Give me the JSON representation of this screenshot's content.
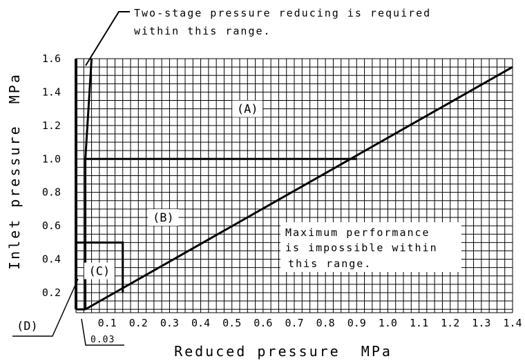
{
  "chart_data": {
    "type": "line",
    "title": "",
    "xlabel": "Reduced pressure  MPa",
    "ylabel": "Inlet pressure  MPa",
    "xlim": [
      0,
      1.4
    ],
    "ylim": [
      0.08,
      1.6
    ],
    "xticks": [
      "0.1",
      "0.2",
      "0.3",
      "0.4",
      "0.5",
      "0.6",
      "0.7",
      "0.8",
      "0.9",
      "1.0",
      "1.1",
      "1.2",
      "1.3",
      "1.4"
    ],
    "xtick_values": [
      0.1,
      0.2,
      0.3,
      0.4,
      0.5,
      0.6,
      0.7,
      0.8,
      0.9,
      1.0,
      1.1,
      1.2,
      1.3,
      1.4
    ],
    "yticks": [
      "0.2",
      "0.4",
      "0.6",
      "0.8",
      "1.0",
      "1.2",
      "1.4",
      "1.6"
    ],
    "ytick_values": [
      0.2,
      0.4,
      0.6,
      0.8,
      1.0,
      1.2,
      1.4,
      1.6
    ],
    "grid": true,
    "boundaries": [
      {
        "points": [
          [
            0.03,
            0.1
          ],
          [
            1.4,
            1.55
          ]
        ]
      },
      {
        "points": [
          [
            0.03,
            1.0
          ],
          [
            0.9,
            1.0
          ]
        ]
      },
      {
        "points": [
          [
            0.03,
            0.1
          ],
          [
            0.03,
            1.0
          ],
          [
            0.05,
            1.6
          ]
        ]
      },
      {
        "points": [
          [
            0.0,
            0.5
          ],
          [
            0.15,
            0.5
          ],
          [
            0.15,
            0.2
          ]
        ]
      },
      {
        "points": [
          [
            0.0,
            0.1
          ],
          [
            0.03,
            0.1
          ]
        ]
      },
      {
        "points": [
          [
            0.0,
            0.1
          ],
          [
            0.0,
            1.6
          ]
        ]
      }
    ],
    "regions": [
      {
        "label": "(A)",
        "x": 0.55,
        "y": 1.3
      },
      {
        "label": "(B)",
        "x": 0.28,
        "y": 0.65
      },
      {
        "label": "(C)",
        "x": 0.075,
        "y": 0.33
      }
    ],
    "annotations": {
      "two_stage": [
        "Two-stage pressure reducing is required",
        "within this range."
      ],
      "max_perf": [
        "Maximum performance",
        "is impossible within",
        "this range."
      ],
      "d_label": "(D)",
      "x_marker": "0.03"
    }
  }
}
